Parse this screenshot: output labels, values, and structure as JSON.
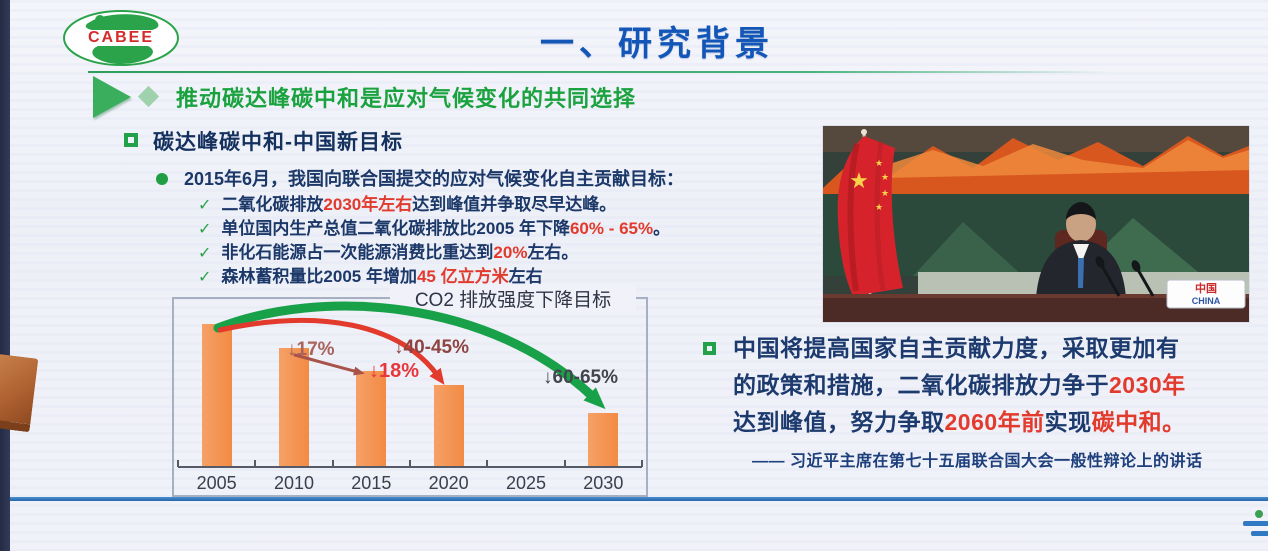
{
  "slide": {
    "logo": {
      "text": "CABEE"
    },
    "title": "一、研究背景",
    "section_header": "推动碳达峰碳中和是应对气候变化的共同选择",
    "goal_heading": "碳达峰碳中和-中国新目标",
    "ndc_intro": "2015年6月，我国向联合国提交的应对气候变化自主贡献目标：",
    "checklist": [
      {
        "pre": "二氧化碳排放",
        "highlight": "2030年左右",
        "post": "达到峰值并争取尽早达峰。"
      },
      {
        "pre": "单位国内生产总值二氧化碳排放比2005 年下降",
        "highlight": "60% - 65%",
        "post": "。"
      },
      {
        "pre": "非化石能源占一次能源消费比重达到",
        "highlight": "20%",
        "post": "左右。"
      },
      {
        "pre": "森林蓄积量比2005 年增加",
        "highlight": "45 亿立方米",
        "post": "左右"
      }
    ],
    "right_panel": {
      "line1": {
        "text": "中国将提高国家自主贡献力度，采取更加有"
      },
      "line2": {
        "pre": "的政策和措施，二氧化碳排放力争于",
        "red": "2030年"
      },
      "line3": {
        "s1": "达到峰值，努力争取",
        "s2": "2060年前",
        "s3": "实现",
        "s4": "碳中和。"
      },
      "attribution": "—— 习近平主席在第七十五届联合国大会一般性辩论上的讲话",
      "nameplate": {
        "cn": "中国",
        "en": "CHINA"
      }
    },
    "colors": {
      "accent_green": "#1fa24a",
      "title_blue": "#1256b8",
      "navy_text": "#1b3868",
      "red_highlight": "#e23a2c",
      "bar_orange": "#f4924e",
      "footer_blue": "#2f7ac2"
    }
  },
  "chart_data": {
    "type": "bar",
    "title": "CO2 排放强度下降目标",
    "categories": [
      "2005",
      "2010",
      "2015",
      "2020",
      "2025",
      "2030"
    ],
    "values": [
      100,
      83,
      67,
      57,
      null,
      37
    ],
    "xlabel": "",
    "ylabel": "",
    "ylim": [
      0,
      105
    ],
    "grid": false,
    "legend": "none",
    "bar_color": "#f4924e",
    "note": "values are relative CO2 emission intensity, 2005 = 100, estimated from bar heights",
    "annotations": [
      {
        "text": "↓17%",
        "color": "#a8635b",
        "refers_to": "2005→2010"
      },
      {
        "text": "↓40-45%",
        "color": "#8e4440",
        "refers_to": "2005→2020"
      },
      {
        "text": "↓18%",
        "color": "#e8363d",
        "refers_to": "2010→2015"
      },
      {
        "text": "↓60-65%",
        "color": "#42454e",
        "refers_to": "2005→2030"
      }
    ],
    "arrows": [
      {
        "from": "2010",
        "to": "2015",
        "color": "#a8534a"
      },
      {
        "from": "2005",
        "to": "2020",
        "color": "#e23a2c"
      },
      {
        "from": "2005",
        "to": "2030",
        "color": "#18a148"
      }
    ]
  }
}
